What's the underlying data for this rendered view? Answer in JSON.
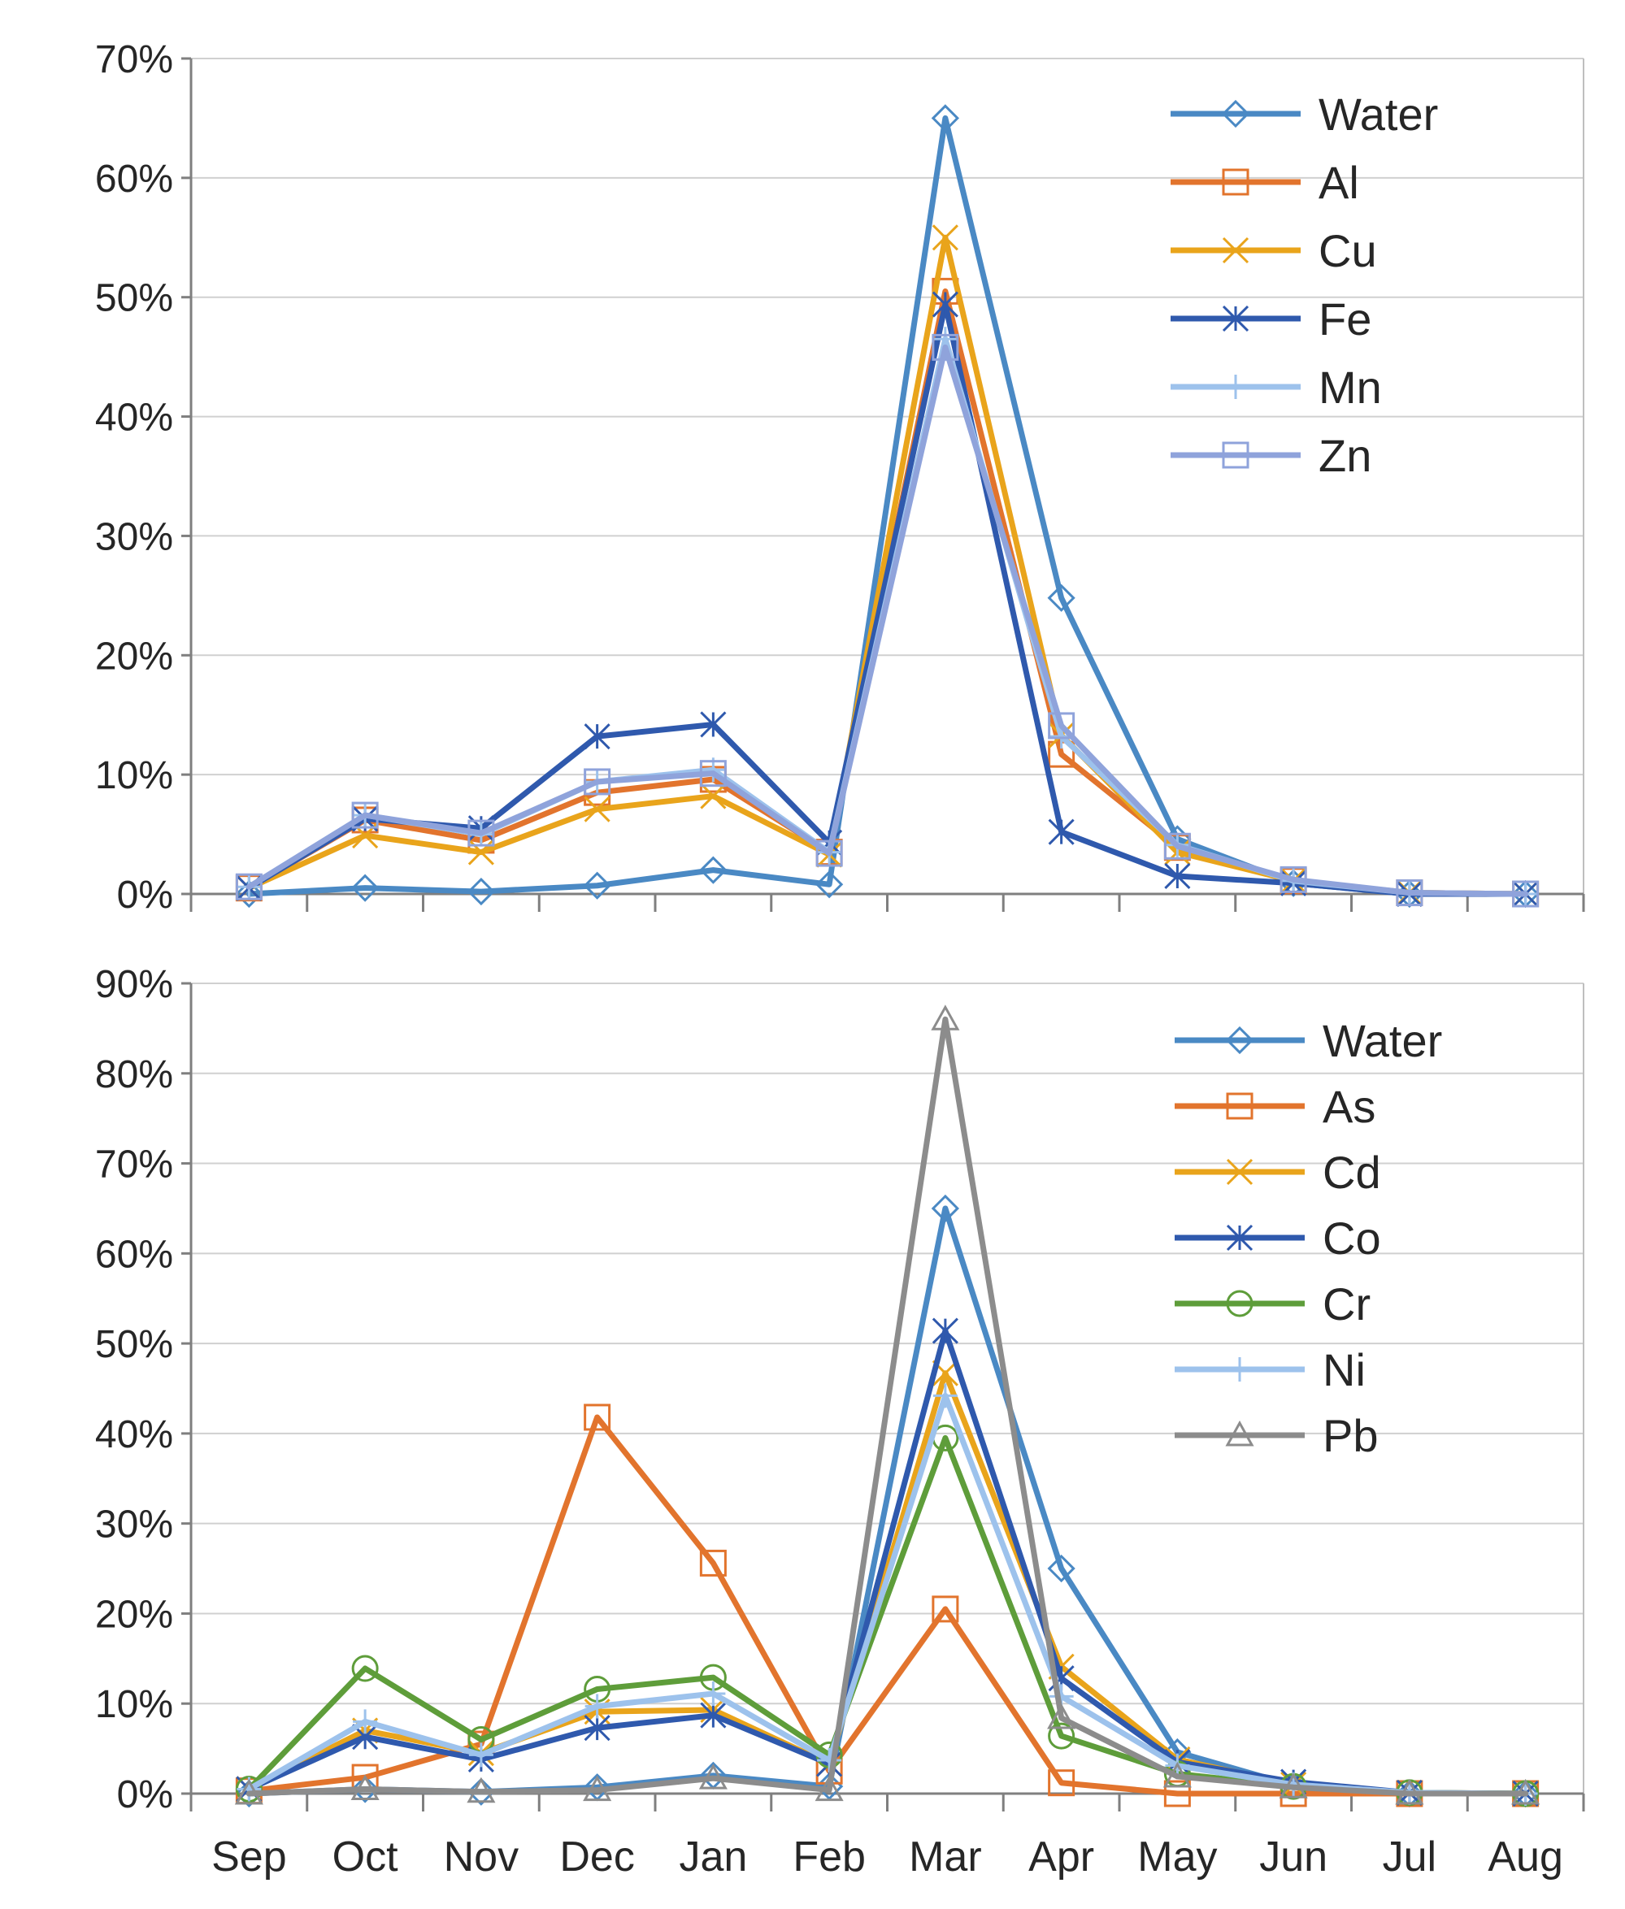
{
  "chart_data": [
    {
      "type": "line",
      "title": "",
      "xlabel": "",
      "ylabel": "",
      "ylim": [
        0,
        70
      ],
      "yticks": [
        0,
        10,
        20,
        30,
        40,
        50,
        60,
        70
      ],
      "ytick_labels": [
        "0%",
        "10%",
        "20%",
        "30%",
        "40%",
        "50%",
        "60%",
        "70%"
      ],
      "grid": true,
      "legend_position": "top-right",
      "categories": [
        "Sep",
        "Oct",
        "Nov",
        "Dec",
        "Jan",
        "Feb",
        "Mar",
        "Apr",
        "May",
        "Jun",
        "Jul",
        "Aug"
      ],
      "series": [
        {
          "name": "Water",
          "color": "#4a89c4",
          "marker": "diamond",
          "values": [
            0.0,
            0.5,
            0.2,
            0.7,
            2.0,
            0.8,
            65.0,
            24.8,
            4.6,
            0.9,
            0.0,
            0.0
          ]
        },
        {
          "name": "Al",
          "color": "#e2742d",
          "marker": "square",
          "values": [
            0.5,
            6.2,
            4.5,
            8.5,
            9.6,
            3.5,
            50.5,
            11.7,
            3.9,
            1.1,
            0.1,
            0.0
          ]
        },
        {
          "name": "Cu",
          "color": "#e9a41b",
          "marker": "x",
          "values": [
            0.5,
            4.9,
            3.5,
            7.1,
            8.2,
            3.3,
            55.0,
            13.3,
            3.5,
            1.1,
            0.1,
            0.0
          ]
        },
        {
          "name": "Fe",
          "color": "#2f59ad",
          "marker": "asterisk",
          "values": [
            0.5,
            6.3,
            5.5,
            13.2,
            14.2,
            4.3,
            49.4,
            5.2,
            1.5,
            0.9,
            0.0,
            0.0
          ]
        },
        {
          "name": "Mn",
          "color": "#9dc2ec",
          "marker": "plus",
          "values": [
            0.6,
            6.6,
            5.0,
            9.4,
            10.4,
            3.5,
            46.5,
            13.2,
            4.1,
            1.1,
            0.1,
            0.0
          ]
        },
        {
          "name": "Zn",
          "color": "#8fa3db",
          "marker": "square",
          "values": [
            0.6,
            6.6,
            5.1,
            9.4,
            10.1,
            3.4,
            45.8,
            14.1,
            4.0,
            1.2,
            0.1,
            0.0
          ]
        }
      ]
    },
    {
      "type": "line",
      "title": "",
      "xlabel": "",
      "ylabel": "",
      "ylim": [
        0,
        90
      ],
      "yticks": [
        0,
        10,
        20,
        30,
        40,
        50,
        60,
        70,
        80,
        90
      ],
      "ytick_labels": [
        "0%",
        "10%",
        "20%",
        "30%",
        "40%",
        "50%",
        "60%",
        "70%",
        "80%",
        "90%"
      ],
      "grid": true,
      "legend_position": "top-right",
      "categories": [
        "Sep",
        "Oct",
        "Nov",
        "Dec",
        "Jan",
        "Feb",
        "Mar",
        "Apr",
        "May",
        "Jun",
        "Jul",
        "Aug"
      ],
      "series": [
        {
          "name": "Water",
          "color": "#4a89c4",
          "marker": "diamond",
          "values": [
            0.0,
            0.5,
            0.2,
            0.7,
            2.0,
            0.8,
            65.0,
            25.0,
            4.6,
            0.9,
            0.0,
            0.0
          ]
        },
        {
          "name": "As",
          "color": "#e2742d",
          "marker": "square",
          "values": [
            0.3,
            1.8,
            5.5,
            41.8,
            25.6,
            2.5,
            20.5,
            1.2,
            0.0,
            0.0,
            0.0,
            0.0
          ]
        },
        {
          "name": "Cd",
          "color": "#e9a41b",
          "marker": "x",
          "values": [
            0.5,
            7.0,
            4.5,
            9.1,
            9.3,
            3.3,
            46.7,
            14.1,
            3.8,
            1.0,
            0.1,
            0.0
          ]
        },
        {
          "name": "Co",
          "color": "#2f59ad",
          "marker": "asterisk",
          "values": [
            0.5,
            6.3,
            3.8,
            7.3,
            8.7,
            3.3,
            51.4,
            12.8,
            3.5,
            1.3,
            0.1,
            0.0
          ]
        },
        {
          "name": "Cr",
          "color": "#5e9d3a",
          "marker": "circle",
          "values": [
            0.5,
            13.9,
            6.0,
            11.6,
            12.9,
            4.3,
            39.5,
            6.4,
            2.2,
            0.8,
            0.1,
            0.0
          ]
        },
        {
          "name": "Ni",
          "color": "#9dc2ec",
          "marker": "plus",
          "values": [
            0.5,
            8.0,
            4.3,
            9.7,
            11.1,
            3.7,
            44.2,
            10.8,
            3.1,
            1.0,
            0.1,
            0.0
          ]
        },
        {
          "name": "Pb",
          "color": "#8c8c8c",
          "marker": "triangle",
          "values": [
            0.0,
            0.5,
            0.2,
            0.4,
            1.7,
            0.4,
            86.0,
            8.4,
            1.9,
            0.7,
            0.0,
            0.0
          ]
        }
      ]
    }
  ]
}
